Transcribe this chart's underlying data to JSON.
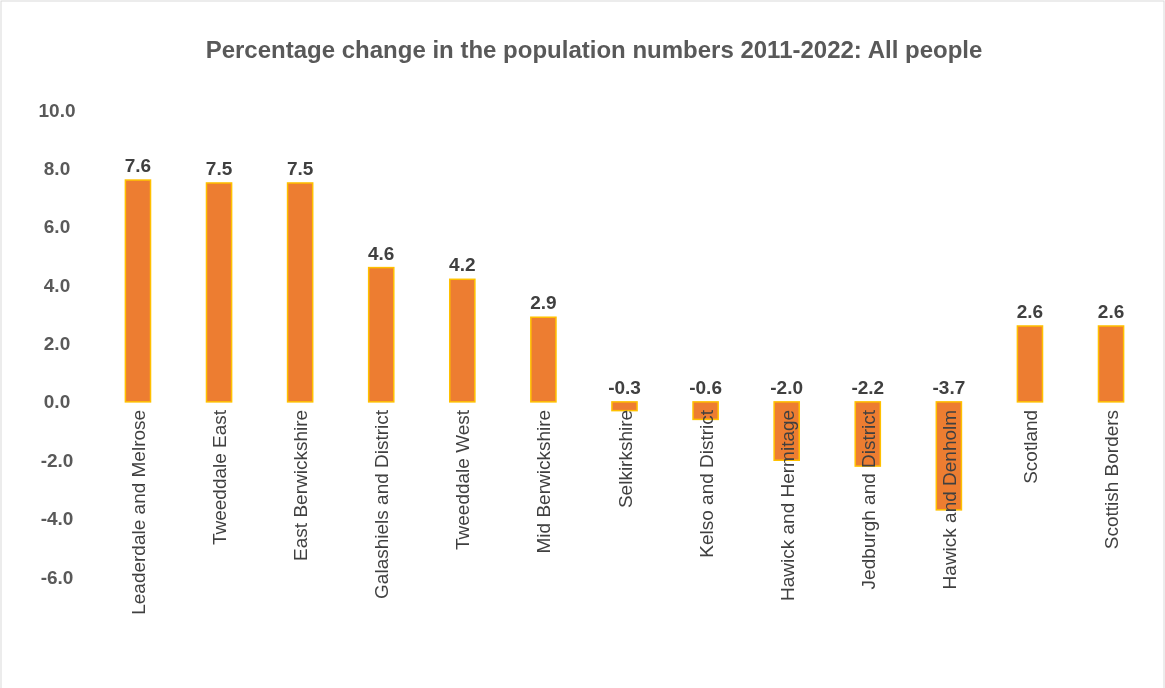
{
  "chart_data": {
    "type": "bar",
    "title": "Percentage change in the population numbers 2011-2022: All people",
    "categories": [
      "Leaderdale and Melrose",
      "Tweeddale East",
      "East Berwickshire",
      "Galashiels and District",
      "Tweeddale West",
      "Mid Berwickshire",
      "Selkirkshire",
      "Kelso and District",
      "Hawick and Hermitage",
      "Jedburgh and District",
      "Hawick and Denholm",
      "Scotland",
      "Scottish Borders"
    ],
    "values": [
      7.6,
      7.5,
      7.5,
      4.6,
      4.2,
      2.9,
      -0.3,
      -0.6,
      -2.0,
      -2.2,
      -3.7,
      2.6,
      2.6
    ],
    "value_labels": [
      "7.6",
      "7.5",
      "7.5",
      "4.6",
      "4.2",
      "2.9",
      "-0.3",
      "-0.6",
      "-2.0",
      "-2.2",
      "-3.7",
      "2.6",
      "2.6"
    ],
    "color": "#ed7d31",
    "ylim": [
      -6,
      10
    ],
    "yticks": [
      {
        "value": -6,
        "label": "-6.0"
      },
      {
        "value": -4,
        "label": "-4.0"
      },
      {
        "value": -2,
        "label": "-2.0"
      },
      {
        "value": 0,
        "label": "0.0"
      },
      {
        "value": 2,
        "label": "2.0"
      },
      {
        "value": 4,
        "label": "4.0"
      },
      {
        "value": 6,
        "label": "6.0"
      },
      {
        "value": 8,
        "label": "8.0"
      },
      {
        "value": 10,
        "label": "10.0"
      }
    ],
    "grid": false
  }
}
